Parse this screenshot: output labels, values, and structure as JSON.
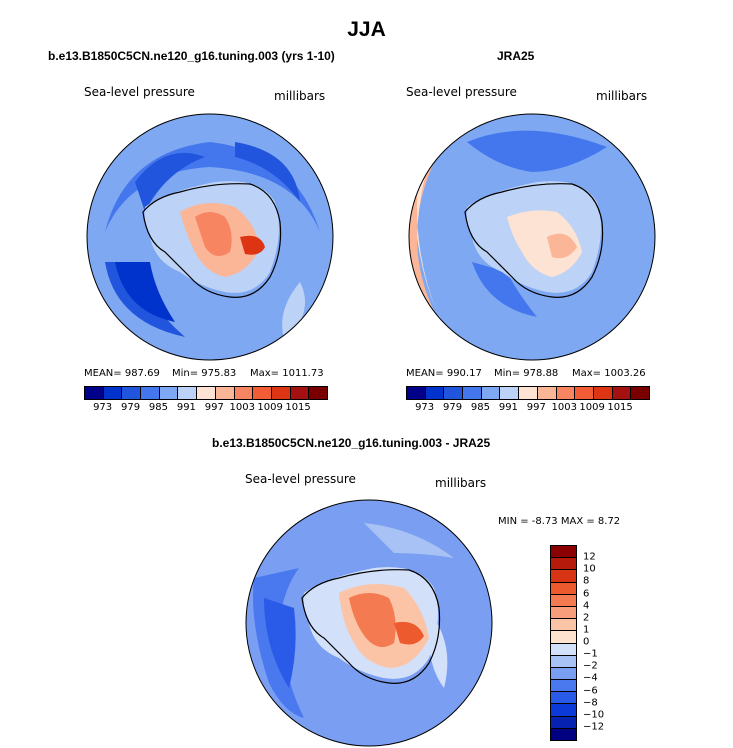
{
  "page_title": "JJA",
  "panels": [
    {
      "subtitle": "b.e13.B1850C5CN.ne120_g16.tuning.003 (yrs 1-10)",
      "left_label": "Sea-level pressure",
      "right_label": "millibars",
      "stats": {
        "mean": "MEAN= 987.69",
        "min": "Min= 975.83",
        "max": "Max= 1011.73"
      }
    },
    {
      "subtitle": "JRA25",
      "left_label": "Sea-level pressure",
      "right_label": "millibars",
      "stats": {
        "mean": "MEAN= 990.17",
        "min": "Min= 978.88",
        "max": "Max= 1003.26"
      }
    },
    {
      "subtitle": "b.e13.B1850C5CN.ne120_g16.tuning.003 - JRA25",
      "left_label": "Sea-level pressure",
      "right_label": "millibars",
      "stats": {
        "minmax": "MIN =  -8.73 MAX =   8.72"
      }
    }
  ],
  "abs_colorbar": {
    "colors": [
      "#000088",
      "#0033cc",
      "#2255dd",
      "#4477ee",
      "#7fa8f2",
      "#bcd3f7",
      "#fde3d3",
      "#fbb597",
      "#f88561",
      "#f25c37",
      "#dd3413",
      "#a51010",
      "#7a0000"
    ],
    "tick_labels": [
      "973",
      "979",
      "985",
      "991",
      "997",
      "1003",
      "1009",
      "1015"
    ]
  },
  "diff_colorbar": {
    "colors": [
      "#000080",
      "#0522b0",
      "#0c3ad8",
      "#2a5ae8",
      "#4a78ee",
      "#7a9ff2",
      "#a9c2f5",
      "#d2e0fa",
      "#fde2d0",
      "#fcc4a7",
      "#f99e7a",
      "#f47a52",
      "#ec5a2e",
      "#d63414",
      "#b51a0a",
      "#8b0000"
    ],
    "tick_labels": [
      "12",
      "10",
      "8",
      "6",
      "4",
      "2",
      "1",
      "0",
      "-1",
      "-2",
      "-4",
      "-6",
      "-8",
      "-10",
      "-12"
    ]
  }
}
